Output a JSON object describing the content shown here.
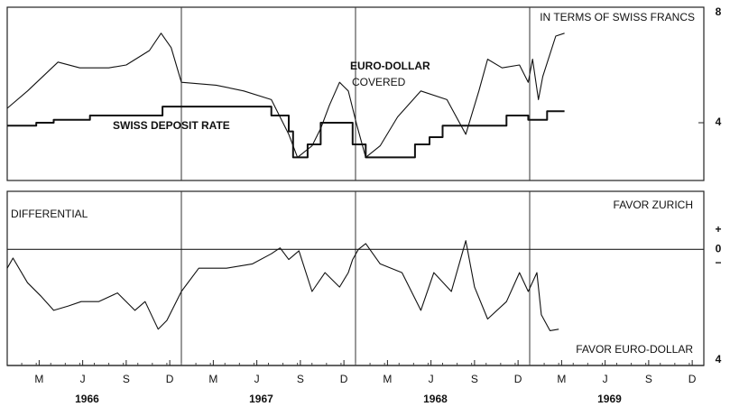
{
  "chart_data": [
    {
      "type": "line",
      "annotations": [
        "IN TERMS OF SWISS FRANCS",
        "COVERED"
      ],
      "xlim": [
        0,
        48
      ],
      "ylim": [
        2,
        8
      ],
      "yticks": [
        4,
        8
      ],
      "grid": false,
      "series": [
        {
          "name": "EURO-DOLLAR",
          "color": "#111111",
          "x": [
            0,
            1.4,
            3.5,
            5,
            7,
            8.2,
            9.8,
            10.6,
            11.3,
            12,
            14.4,
            16.3,
            18.2,
            19.4,
            20,
            21,
            21.6,
            22.2,
            22.9,
            23.5,
            24.1,
            24.7,
            25.7,
            26.9,
            28.5,
            30.3,
            31.6,
            32.5,
            33.1,
            34.1,
            35.3,
            35.9,
            36.2,
            36.6,
            36.9,
            37.8,
            38.4
          ],
          "values": [
            4.5,
            5.1,
            6.1,
            5.9,
            5.9,
            6.0,
            6.5,
            7.1,
            6.6,
            5.4,
            5.3,
            5.1,
            4.8,
            3.6,
            2.8,
            3.2,
            3.8,
            4.6,
            5.4,
            5.1,
            3.9,
            2.8,
            3.2,
            4.2,
            5.1,
            4.8,
            3.6,
            5.1,
            6.2,
            5.9,
            6.0,
            5.4,
            6.2,
            4.8,
            5.6,
            7.0,
            7.1
          ]
        },
        {
          "name": "SWISS DEPOSIT RATE",
          "color": "#111111",
          "x": [
            0,
            2,
            2,
            3.2,
            3.2,
            5.7,
            5.7,
            10.7,
            10.7,
            18.2,
            18.2,
            19.4,
            19.4,
            19.7,
            19.7,
            20.7,
            20.7,
            21.6,
            21.6,
            23.8,
            23.8,
            24.7,
            24.7,
            28.1,
            28.1,
            29.1,
            29.1,
            30,
            30,
            34.4,
            34.4,
            35.9,
            35.9,
            37.2,
            37.2,
            38.4
          ],
          "values": [
            3.9,
            3.9,
            4.0,
            4.0,
            4.1,
            4.1,
            4.25,
            4.25,
            4.56,
            4.56,
            4.25,
            4.25,
            3.7,
            3.7,
            2.8,
            2.8,
            3.25,
            3.25,
            4.0,
            4.0,
            3.25,
            3.25,
            2.8,
            2.8,
            3.25,
            3.25,
            3.5,
            3.5,
            3.9,
            3.9,
            4.25,
            4.25,
            4.1,
            4.1,
            4.4,
            4.4
          ]
        }
      ]
    },
    {
      "type": "line",
      "annotations": [
        "FAVOR ZURICH",
        "FAVOR EURO-DOLLAR",
        "+",
        "−"
      ],
      "xlim": [
        0,
        48
      ],
      "ylim": [
        -4,
        2
      ],
      "yticks": [
        0,
        {
          "value": -4,
          "label": "4"
        }
      ],
      "grid": true,
      "xticks": [
        {
          "value": 2.2,
          "label": "M"
        },
        {
          "value": 5.2,
          "label": "J"
        },
        {
          "value": 8.2,
          "label": "S"
        },
        {
          "value": 11.2,
          "label": "D"
        },
        {
          "value": 14.2,
          "label": "M"
        },
        {
          "value": 17.2,
          "label": "J"
        },
        {
          "value": 20.2,
          "label": "S"
        },
        {
          "value": 23.2,
          "label": "D"
        },
        {
          "value": 26.2,
          "label": "M"
        },
        {
          "value": 29.2,
          "label": "J"
        },
        {
          "value": 32.2,
          "label": "S"
        },
        {
          "value": 35.2,
          "label": "D"
        },
        {
          "value": 38.2,
          "label": "M"
        },
        {
          "value": 41.2,
          "label": "J"
        },
        {
          "value": 44.2,
          "label": "S"
        },
        {
          "value": 47.2,
          "label": "D"
        }
      ],
      "year_labels": [
        "1966",
        "1967",
        "1968",
        "1969"
      ],
      "series": [
        {
          "name": "DIFFERENTIAL",
          "color": "#111111",
          "x": [
            0,
            0.4,
            1.4,
            2.3,
            3.2,
            4.2,
            5.1,
            6.3,
            7.6,
            8.8,
            9.5,
            10.4,
            11,
            12,
            13.2,
            15.1,
            16.9,
            18.2,
            18.8,
            19.4,
            20.1,
            21,
            21.9,
            22.9,
            23.5,
            23.8,
            24.2,
            24.7,
            25.7,
            27.2,
            28.5,
            29.4,
            30.6,
            31.6,
            32.2,
            33.1,
            34.4,
            35.3,
            35.9,
            36.5,
            36.8,
            37.4,
            38
          ],
          "values": [
            -0.65,
            -0.3,
            -1.15,
            -1.6,
            -2.1,
            -1.95,
            -1.8,
            -1.8,
            -1.5,
            -2.1,
            -1.8,
            -2.75,
            -2.45,
            -1.45,
            -0.65,
            -0.65,
            -0.5,
            -0.15,
            0.05,
            -0.35,
            -0.05,
            -1.45,
            -0.8,
            -1.3,
            -0.8,
            -0.35,
            0,
            0.2,
            -0.5,
            -0.8,
            -2.1,
            -0.8,
            -1.45,
            0.3,
            -1.3,
            -2.4,
            -1.8,
            -0.8,
            -1.45,
            -0.8,
            -2.25,
            -2.8,
            -2.75
          ]
        }
      ]
    }
  ]
}
